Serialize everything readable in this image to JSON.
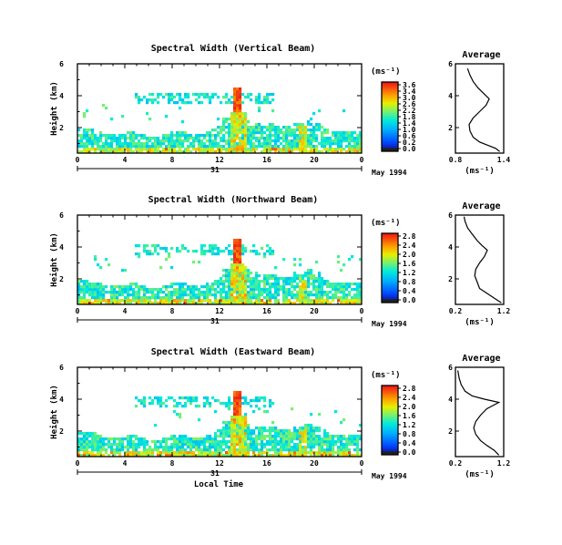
{
  "chart_data": [
    {
      "type": "heatmap",
      "title": "Spectral Width (Vertical Beam)",
      "xlabel": "",
      "ylabel": "Height (km)",
      "x_ticks": [
        "0",
        "4",
        "8",
        "12",
        "16",
        "20",
        "0"
      ],
      "y_ticks": [
        "2",
        "4",
        "6"
      ],
      "xlim": [
        0,
        24
      ],
      "ylim": [
        0.4,
        6.0
      ],
      "date_label": "31",
      "month_label": "May 1994",
      "colorbar": {
        "unit": "(ms⁻¹)",
        "tick_labels": [
          "3.6",
          "3.4",
          "3.0",
          "2.6",
          "2.2",
          "1.8",
          "1.4",
          "1.0",
          "0.6",
          "0.2",
          "0.0"
        ],
        "range": [
          0.0,
          3.6
        ]
      },
      "average_profile": {
        "title": "Average",
        "xlabel": "(ms⁻¹)",
        "x_ticks": [
          "0.8",
          "1.4"
        ],
        "xlim": [
          0.8,
          1.4
        ],
        "y_ticks": [
          "2",
          "4",
          "6"
        ],
        "ylim": [
          0.4,
          6.0
        ],
        "points": [
          [
            1.35,
            0.5
          ],
          [
            1.3,
            0.7
          ],
          [
            1.2,
            0.9
          ],
          [
            1.1,
            1.1
          ],
          [
            1.02,
            1.4
          ],
          [
            0.98,
            1.8
          ],
          [
            0.97,
            2.2
          ],
          [
            1.02,
            2.6
          ],
          [
            1.1,
            3.0
          ],
          [
            1.18,
            3.4
          ],
          [
            1.22,
            3.8
          ],
          [
            1.16,
            4.1
          ],
          [
            1.08,
            4.5
          ],
          [
            1.02,
            4.9
          ],
          [
            0.98,
            5.3
          ],
          [
            0.95,
            5.7
          ]
        ]
      }
    },
    {
      "type": "heatmap",
      "title": "Spectral Width (Northward Beam)",
      "xlabel": "",
      "ylabel": "Height (km)",
      "x_ticks": [
        "0",
        "4",
        "8",
        "12",
        "16",
        "20",
        "0"
      ],
      "y_ticks": [
        "2",
        "4",
        "6"
      ],
      "xlim": [
        0,
        24
      ],
      "ylim": [
        0.4,
        6.0
      ],
      "date_label": "31",
      "month_label": "May 1994",
      "colorbar": {
        "unit": "(ms⁻¹)",
        "tick_labels": [
          "2.8",
          "2.4",
          "2.0",
          "1.6",
          "1.2",
          "0.8",
          "0.4",
          "0.0"
        ],
        "range": [
          0.0,
          2.8
        ]
      },
      "average_profile": {
        "title": "Average",
        "xlabel": "(ms⁻¹)",
        "x_ticks": [
          "0.2",
          "1.2"
        ],
        "xlim": [
          0.2,
          1.2
        ],
        "y_ticks": [
          "2",
          "4",
          "6"
        ],
        "ylim": [
          0.4,
          6.0
        ],
        "points": [
          [
            1.15,
            0.5
          ],
          [
            1.0,
            0.8
          ],
          [
            0.85,
            1.1
          ],
          [
            0.7,
            1.4
          ],
          [
            0.65,
            1.8
          ],
          [
            0.6,
            2.2
          ],
          [
            0.62,
            2.6
          ],
          [
            0.7,
            3.0
          ],
          [
            0.8,
            3.4
          ],
          [
            0.86,
            3.8
          ],
          [
            0.75,
            4.1
          ],
          [
            0.65,
            4.4
          ],
          [
            0.55,
            4.8
          ],
          [
            0.45,
            5.2
          ],
          [
            0.4,
            5.6
          ],
          [
            0.38,
            5.9
          ]
        ]
      }
    },
    {
      "type": "heatmap",
      "title": "Spectral Width (Eastward Beam)",
      "xlabel": "Local Time",
      "ylabel": "Height (km)",
      "x_ticks": [
        "0",
        "4",
        "8",
        "12",
        "16",
        "20",
        "0"
      ],
      "y_ticks": [
        "2",
        "4",
        "6"
      ],
      "xlim": [
        0,
        24
      ],
      "ylim": [
        0.4,
        6.0
      ],
      "date_label": "31",
      "month_label": "May 1994",
      "colorbar": {
        "unit": "(ms⁻¹)",
        "tick_labels": [
          "2.8",
          "2.4",
          "2.0",
          "1.6",
          "1.2",
          "0.8",
          "0.4",
          "0.0"
        ],
        "range": [
          0.0,
          2.8
        ]
      },
      "average_profile": {
        "title": "Average",
        "xlabel": "(ms⁻¹)",
        "x_ticks": [
          "0.2",
          "1.2"
        ],
        "xlim": [
          0.2,
          1.2
        ],
        "y_ticks": [
          "2",
          "4",
          "6"
        ],
        "ylim": [
          0.4,
          6.0
        ],
        "points": [
          [
            1.1,
            0.5
          ],
          [
            1.0,
            0.8
          ],
          [
            0.85,
            1.1
          ],
          [
            0.72,
            1.4
          ],
          [
            0.62,
            1.8
          ],
          [
            0.58,
            2.2
          ],
          [
            0.62,
            2.6
          ],
          [
            0.72,
            3.0
          ],
          [
            0.85,
            3.4
          ],
          [
            1.1,
            3.8
          ],
          [
            0.8,
            4.0
          ],
          [
            0.55,
            4.2
          ],
          [
            0.4,
            4.5
          ],
          [
            0.32,
            4.9
          ],
          [
            0.28,
            5.3
          ],
          [
            0.25,
            5.8
          ]
        ]
      }
    }
  ]
}
